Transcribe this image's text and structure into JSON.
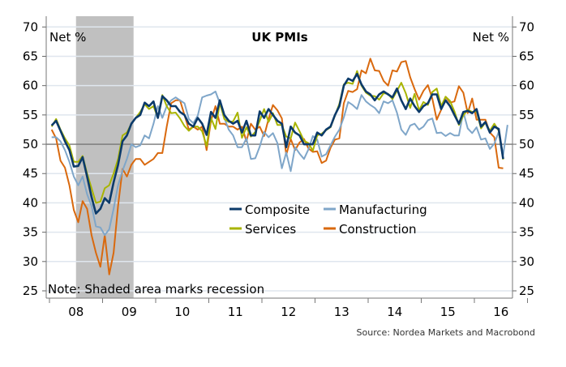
{
  "chart_data": {
    "type": "line",
    "title": "UK PMIs",
    "ylabel_left": "Net %",
    "ylabel_right": "Net %",
    "note": "Note: Shaded area marks recession",
    "source": "Source: Nordea Markets and Macrobond",
    "ylim": [
      25,
      70
    ],
    "yticks": [
      25,
      30,
      35,
      40,
      45,
      50,
      55,
      60,
      65,
      70
    ],
    "reference_line": 50,
    "x_start": "2008-01",
    "frequency": "monthly",
    "xticks": [
      "08",
      "09",
      "10",
      "11",
      "12",
      "13",
      "14",
      "15",
      "16"
    ],
    "grid": true,
    "legend_placement": "center-right",
    "recession": {
      "start": "2008-07",
      "end": "2009-07",
      "color": "#c0c0c0"
    },
    "series": [
      {
        "name": "Construction",
        "color": "#d9690e",
        "values": [
          52.5,
          51.0,
          47.2,
          46.0,
          43.0,
          38.8,
          36.7,
          40.3,
          39.0,
          34.5,
          31.5,
          29.1,
          34.5,
          27.8,
          31.5,
          39.5,
          45.8,
          44.5,
          46.5,
          47.5,
          47.5,
          46.5,
          47.0,
          47.5,
          48.5,
          48.5,
          53.0,
          57.0,
          57.5,
          57.5,
          55.0,
          52.5,
          53.0,
          52.5,
          53.0,
          49.0,
          54.0,
          56.5,
          53.5,
          53.5,
          53.0,
          53.0,
          52.5,
          53.0,
          50.5,
          53.5,
          52.5,
          53.0,
          51.4,
          54.3,
          56.7,
          55.8,
          54.4,
          48.2,
          50.9,
          49.0,
          50.3,
          50.9,
          49.3,
          48.7,
          48.8,
          46.8,
          47.2,
          49.4,
          50.8,
          51.0,
          57.0,
          59.1,
          58.9,
          59.4,
          62.6,
          62.1,
          64.6,
          62.6,
          62.5,
          60.8,
          60.0,
          62.6,
          62.4,
          64.0,
          64.2,
          61.4,
          59.4,
          57.6,
          59.1,
          60.1,
          57.8,
          54.2,
          55.9,
          58.1,
          57.1,
          57.3,
          59.9,
          58.8,
          55.3,
          57.8,
          54.2,
          54.2,
          54.2,
          52.0,
          51.2,
          46.0,
          45.9
        ]
      },
      {
        "name": "Manufacturing",
        "color": "#7fa6c9",
        "values": [
          51.2,
          51.2,
          50.5,
          49.0,
          47.0,
          44.5,
          43.0,
          44.5,
          41.5,
          39.5,
          36.0,
          35.8,
          34.5,
          35.5,
          39.0,
          43.0,
          45.5,
          47.5,
          50.0,
          49.5,
          49.8,
          51.5,
          51.0,
          53.5,
          56.5,
          54.5,
          56.5,
          57.5,
          58.0,
          57.5,
          57.0,
          54.3,
          53.6,
          54.9,
          58.0,
          58.3,
          58.5,
          59.0,
          57.0,
          54.5,
          52.5,
          51.5,
          49.5,
          49.5,
          51.0,
          47.5,
          47.6,
          49.6,
          52.1,
          51.2,
          51.9,
          50.2,
          45.9,
          48.6,
          45.4,
          49.5,
          48.4,
          47.5,
          49.1,
          51.4,
          50.8,
          47.9,
          48.3,
          49.8,
          51.3,
          52.5,
          54.6,
          57.2,
          56.7,
          56.0,
          58.4,
          57.3,
          56.7,
          56.2,
          55.3,
          57.3,
          57.0,
          57.5,
          55.4,
          52.5,
          51.6,
          53.2,
          53.5,
          52.5,
          53.0,
          54.1,
          54.4,
          51.9,
          52.0,
          51.4,
          51.9,
          51.5,
          51.5,
          55.5,
          52.7,
          51.9,
          52.9,
          50.8,
          51.0,
          49.2,
          50.1,
          52.1,
          48.2,
          53.3
        ]
      },
      {
        "name": "Services",
        "color": "#a8b400",
        "values": [
          53.0,
          54.3,
          52.5,
          51.0,
          49.8,
          47.0,
          47.0,
          48.0,
          45.0,
          42.5,
          40.0,
          40.2,
          42.5,
          43.0,
          45.0,
          47.5,
          51.5,
          52.0,
          53.5,
          54.5,
          55.5,
          56.8,
          56.0,
          56.5,
          54.5,
          58.4,
          56.5,
          55.3,
          55.4,
          54.4,
          53.1,
          52.3,
          53.0,
          53.0,
          52.2,
          49.7,
          54.5,
          52.6,
          57.1,
          54.3,
          53.8,
          53.9,
          55.4,
          51.1,
          52.9,
          51.3,
          52.1,
          54.0,
          56.0,
          53.8,
          55.3,
          53.3,
          53.3,
          51.3,
          51.0,
          53.7,
          52.2,
          50.6,
          50.2,
          48.9,
          51.5,
          51.8,
          52.4,
          52.9,
          54.9,
          56.9,
          60.2,
          60.5,
          60.3,
          62.5,
          60.0,
          58.8,
          58.3,
          58.2,
          57.6,
          58.7,
          58.6,
          57.7,
          59.1,
          60.5,
          58.7,
          56.2,
          58.6,
          55.8,
          57.2,
          56.7,
          58.9,
          59.5,
          56.5,
          58.1,
          57.4,
          55.6,
          53.3,
          54.9,
          55.9,
          55.5,
          55.6,
          52.7,
          53.7,
          52.3,
          53.5,
          52.3,
          47.4
        ]
      },
      {
        "name": "Composite",
        "color": "#0b3a6a",
        "values": [
          53.2,
          54.0,
          52.3,
          50.5,
          49.0,
          46.2,
          46.3,
          47.8,
          44.5,
          41.0,
          38.2,
          39.0,
          40.8,
          40.0,
          43.5,
          46.5,
          50.5,
          51.5,
          53.5,
          54.5,
          55.0,
          57.1,
          56.5,
          57.3,
          54.5,
          58.2,
          57.5,
          56.5,
          56.5,
          55.5,
          55.0,
          53.5,
          53.0,
          54.5,
          53.5,
          51.6,
          55.5,
          54.5,
          57.5,
          55.0,
          54.0,
          53.5,
          54.0,
          52.0,
          54.0,
          51.5,
          51.5,
          55.6,
          54.5,
          56.0,
          55.0,
          54.0,
          53.5,
          49.5,
          53.0,
          52.0,
          51.5,
          50.0,
          50.0,
          50.0,
          52.0,
          51.5,
          52.5,
          53.0,
          55.0,
          56.5,
          60.0,
          61.2,
          60.8,
          62.0,
          60.2,
          59.0,
          58.5,
          57.5,
          58.5,
          59.0,
          58.5,
          58.0,
          59.5,
          57.5,
          56.0,
          57.8,
          56.5,
          55.5,
          56.5,
          57.0,
          58.5,
          58.5,
          56.0,
          57.5,
          56.5,
          55.0,
          53.5,
          55.5,
          55.7,
          55.3,
          56.0,
          53.0,
          53.8,
          52.0,
          53.0,
          52.6,
          47.5
        ]
      }
    ]
  }
}
